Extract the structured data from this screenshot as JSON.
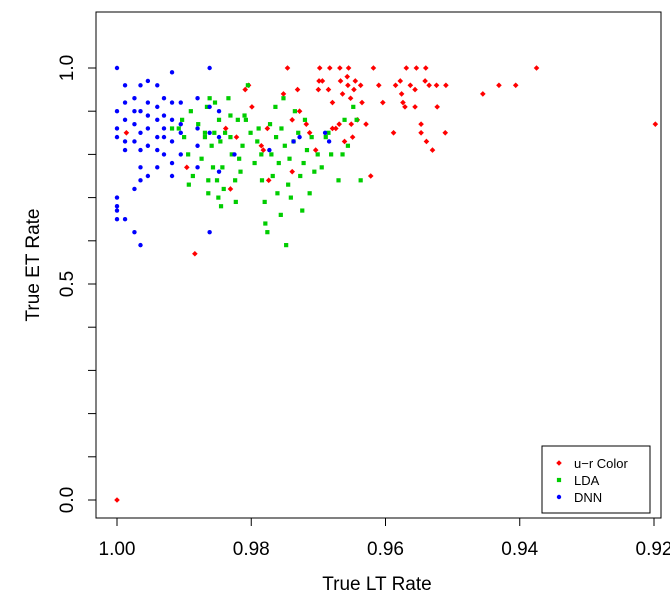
{
  "chart_data": {
    "type": "scatter",
    "title": "",
    "xlabel": "True LT Rate",
    "ylabel": "True ET Rate",
    "xlim": [
      1.0,
      0.92
    ],
    "ylim": [
      0.0,
      1.0
    ],
    "x_reversed": true,
    "grid": false,
    "legend_position": "bottom-right",
    "x_ticks": [
      {
        "value": 1.0,
        "label": "1.00"
      },
      {
        "value": 0.98,
        "label": "0.98"
      },
      {
        "value": 0.96,
        "label": "0.96"
      },
      {
        "value": 0.94,
        "label": "0.94"
      },
      {
        "value": 0.92,
        "label": "0.92"
      }
    ],
    "y_ticks": [
      {
        "value": 0.0,
        "label": "0.0"
      },
      {
        "value": 0.5,
        "label": "0.5"
      },
      {
        "value": 1.0,
        "label": "1.0"
      }
    ],
    "series": [
      {
        "name": "u−r Color",
        "color": "#ff0000",
        "marker": "diamond",
        "points": [
          [
            1.0,
            0.0
          ],
          [
            0.9884,
            0.57
          ],
          [
            0.9896,
            0.77
          ],
          [
            0.9986,
            0.85
          ],
          [
            0.9838,
            0.86
          ],
          [
            0.9822,
            0.84
          ],
          [
            0.9776,
            0.86
          ],
          [
            0.9785,
            0.82
          ],
          [
            0.9831,
            0.72
          ],
          [
            0.9809,
            0.95
          ],
          [
            0.9804,
            0.96
          ],
          [
            0.9799,
            0.91
          ],
          [
            0.9782,
            0.81
          ],
          [
            0.9774,
            0.74
          ],
          [
            0.9752,
            0.94
          ],
          [
            0.9746,
            1.0
          ],
          [
            0.9739,
            0.88
          ],
          [
            0.9739,
            0.76
          ],
          [
            0.9731,
            0.95
          ],
          [
            0.9728,
            0.9
          ],
          [
            0.9718,
            0.87
          ],
          [
            0.9713,
            0.85
          ],
          [
            0.9704,
            0.81
          ],
          [
            0.97,
            0.95
          ],
          [
            0.9699,
            0.97
          ],
          [
            0.9698,
            1.0
          ],
          [
            0.9694,
            0.97
          ],
          [
            0.9685,
            0.95
          ],
          [
            0.9683,
            1.0
          ],
          [
            0.9679,
            0.92
          ],
          [
            0.9679,
            0.86
          ],
          [
            0.9674,
            0.86
          ],
          [
            0.9669,
            0.87
          ],
          [
            0.9668,
            1.0
          ],
          [
            0.9667,
            0.97
          ],
          [
            0.9664,
            0.94
          ],
          [
            0.9661,
            0.83
          ],
          [
            0.9657,
            0.98
          ],
          [
            0.9656,
            0.96
          ],
          [
            0.9655,
            1.0
          ],
          [
            0.9652,
            0.93
          ],
          [
            0.9651,
            0.87
          ],
          [
            0.9649,
            0.84
          ],
          [
            0.9647,
            0.95
          ],
          [
            0.9645,
            0.97
          ],
          [
            0.9642,
            0.88
          ],
          [
            0.9637,
            0.96
          ],
          [
            0.9635,
            0.92
          ],
          [
            0.9629,
            0.87
          ],
          [
            0.9622,
            0.75
          ],
          [
            0.9618,
            1.0
          ],
          [
            0.961,
            0.96
          ],
          [
            0.9604,
            0.92
          ],
          [
            0.9588,
            0.85
          ],
          [
            0.9585,
            0.96
          ],
          [
            0.9578,
            0.97
          ],
          [
            0.9576,
            0.94
          ],
          [
            0.9574,
            0.92
          ],
          [
            0.9571,
            0.91
          ],
          [
            0.9569,
            1.0
          ],
          [
            0.9563,
            0.96
          ],
          [
            0.9556,
            0.95
          ],
          [
            0.9556,
            0.91
          ],
          [
            0.9554,
            1.0
          ],
          [
            0.9547,
            0.87
          ],
          [
            0.9547,
            0.85
          ],
          [
            0.9541,
            0.97
          ],
          [
            0.954,
            1.0
          ],
          [
            0.9539,
            0.83
          ],
          [
            0.9535,
            0.96
          ],
          [
            0.953,
            0.81
          ],
          [
            0.9524,
            0.96
          ],
          [
            0.9523,
            0.91
          ],
          [
            0.9511,
            0.85
          ],
          [
            0.951,
            0.96
          ],
          [
            0.9455,
            0.94
          ],
          [
            0.9431,
            0.96
          ],
          [
            0.9406,
            0.96
          ],
          [
            0.9375,
            1.0
          ],
          [
            0.9198,
            0.87
          ]
        ]
      },
      {
        "name": "LDA",
        "color": "#00cd00",
        "marker": "square",
        "points": [
          [
            0.9918,
            0.86
          ],
          [
            0.9908,
            0.86
          ],
          [
            0.9903,
            0.88
          ],
          [
            0.99,
            0.84
          ],
          [
            0.9894,
            0.8
          ],
          [
            0.9893,
            0.73
          ],
          [
            0.989,
            0.9
          ],
          [
            0.9887,
            0.75
          ],
          [
            0.9879,
            0.87
          ],
          [
            0.9874,
            0.79
          ],
          [
            0.9869,
            0.85
          ],
          [
            0.9869,
            0.84
          ],
          [
            0.9866,
            0.91
          ],
          [
            0.9864,
            0.74
          ],
          [
            0.9864,
            0.71
          ],
          [
            0.9862,
            0.93
          ],
          [
            0.9859,
            0.82
          ],
          [
            0.9857,
            0.77
          ],
          [
            0.9855,
            0.85
          ],
          [
            0.9854,
            0.92
          ],
          [
            0.9851,
            0.74
          ],
          [
            0.9849,
            0.7
          ],
          [
            0.9848,
            0.88
          ],
          [
            0.9846,
            0.83
          ],
          [
            0.9845,
            0.68
          ],
          [
            0.9843,
            0.77
          ],
          [
            0.9841,
            0.72
          ],
          [
            0.9839,
            0.85
          ],
          [
            0.9834,
            0.93
          ],
          [
            0.9831,
            0.89
          ],
          [
            0.9831,
            0.84
          ],
          [
            0.9829,
            0.8
          ],
          [
            0.9824,
            0.74
          ],
          [
            0.9823,
            0.69
          ],
          [
            0.982,
            0.88
          ],
          [
            0.9818,
            0.79
          ],
          [
            0.9816,
            0.76
          ],
          [
            0.9813,
            0.82
          ],
          [
            0.981,
            0.89
          ],
          [
            0.9808,
            0.88
          ],
          [
            0.9805,
            0.96
          ],
          [
            0.9801,
            0.85
          ],
          [
            0.9795,
            0.78
          ],
          [
            0.9791,
            0.83
          ],
          [
            0.9789,
            0.86
          ],
          [
            0.9785,
            0.8
          ],
          [
            0.9784,
            0.74
          ],
          [
            0.978,
            0.69
          ],
          [
            0.9779,
            0.64
          ],
          [
            0.9776,
            0.62
          ],
          [
            0.9772,
            0.87
          ],
          [
            0.977,
            0.8
          ],
          [
            0.9768,
            0.75
          ],
          [
            0.9764,
            0.91
          ],
          [
            0.9763,
            0.84
          ],
          [
            0.9761,
            0.71
          ],
          [
            0.9759,
            0.78
          ],
          [
            0.9756,
            0.66
          ],
          [
            0.9755,
            0.86
          ],
          [
            0.9752,
            0.93
          ],
          [
            0.975,
            0.82
          ],
          [
            0.9748,
            0.59
          ],
          [
            0.9745,
            0.73
          ],
          [
            0.9743,
            0.79
          ],
          [
            0.9741,
            0.7
          ],
          [
            0.9737,
            0.83
          ],
          [
            0.9735,
            0.9
          ],
          [
            0.973,
            0.85
          ],
          [
            0.9727,
            0.75
          ],
          [
            0.9724,
            0.67
          ],
          [
            0.9722,
            0.78
          ],
          [
            0.972,
            0.88
          ],
          [
            0.9717,
            0.81
          ],
          [
            0.9713,
            0.71
          ],
          [
            0.971,
            0.84
          ],
          [
            0.9706,
            0.76
          ],
          [
            0.9701,
            0.8
          ],
          [
            0.9695,
            0.77
          ],
          [
            0.9689,
            0.84
          ],
          [
            0.9685,
            0.85
          ],
          [
            0.9681,
            0.8
          ],
          [
            0.967,
            0.74
          ],
          [
            0.9664,
            0.8
          ],
          [
            0.9661,
            0.88
          ],
          [
            0.9656,
            0.82
          ],
          [
            0.9648,
            0.91
          ],
          [
            0.9643,
            0.88
          ],
          [
            0.9637,
            0.74
          ]
        ]
      },
      {
        "name": "DNN",
        "color": "#0000ff",
        "marker": "circle",
        "points": [
          [
            1.0,
            1.0
          ],
          [
            1.0,
            0.9
          ],
          [
            1.0,
            0.86
          ],
          [
            1.0,
            0.84
          ],
          [
            1.0,
            0.7
          ],
          [
            1.0,
            0.68
          ],
          [
            1.0,
            0.67
          ],
          [
            1.0,
            0.65
          ],
          [
            0.9988,
            0.92
          ],
          [
            0.9988,
            0.88
          ],
          [
            0.9988,
            0.83
          ],
          [
            0.9988,
            0.81
          ],
          [
            0.9988,
            0.65
          ],
          [
            0.9988,
            0.96
          ],
          [
            0.9974,
            0.93
          ],
          [
            0.9974,
            0.9
          ],
          [
            0.9974,
            0.87
          ],
          [
            0.9974,
            0.83
          ],
          [
            0.9974,
            0.72
          ],
          [
            0.9974,
            0.62
          ],
          [
            0.9965,
            0.96
          ],
          [
            0.9965,
            0.9
          ],
          [
            0.9965,
            0.85
          ],
          [
            0.9965,
            0.81
          ],
          [
            0.9965,
            0.77
          ],
          [
            0.9965,
            0.74
          ],
          [
            0.9965,
            0.59
          ],
          [
            0.9954,
            0.97
          ],
          [
            0.9954,
            0.92
          ],
          [
            0.9954,
            0.89
          ],
          [
            0.9954,
            0.86
          ],
          [
            0.9954,
            0.82
          ],
          [
            0.9954,
            0.75
          ],
          [
            0.994,
            0.96
          ],
          [
            0.994,
            0.91
          ],
          [
            0.994,
            0.88
          ],
          [
            0.994,
            0.84
          ],
          [
            0.994,
            0.81
          ],
          [
            0.994,
            0.77
          ],
          [
            0.993,
            0.93
          ],
          [
            0.993,
            0.89
          ],
          [
            0.993,
            0.86
          ],
          [
            0.993,
            0.84
          ],
          [
            0.993,
            0.8
          ],
          [
            0.9918,
            0.99
          ],
          [
            0.9918,
            0.92
          ],
          [
            0.9918,
            0.88
          ],
          [
            0.9918,
            0.83
          ],
          [
            0.9918,
            0.78
          ],
          [
            0.9918,
            0.75
          ],
          [
            0.9905,
            0.92
          ],
          [
            0.9905,
            0.87
          ],
          [
            0.9905,
            0.85
          ],
          [
            0.9905,
            0.8
          ],
          [
            0.988,
            0.93
          ],
          [
            0.988,
            0.86
          ],
          [
            0.988,
            0.82
          ],
          [
            0.988,
            0.77
          ],
          [
            0.9862,
            1.0
          ],
          [
            0.9862,
            0.91
          ],
          [
            0.9862,
            0.85
          ],
          [
            0.9862,
            0.62
          ],
          [
            0.9848,
            0.9
          ],
          [
            0.9848,
            0.84
          ],
          [
            0.9848,
            0.76
          ],
          [
            0.9825,
            0.8
          ],
          [
            0.9773,
            0.81
          ],
          [
            0.9737,
            0.83
          ],
          [
            0.9728,
            0.84
          ],
          [
            0.969,
            0.85
          ],
          [
            0.9684,
            0.83
          ]
        ]
      }
    ]
  }
}
